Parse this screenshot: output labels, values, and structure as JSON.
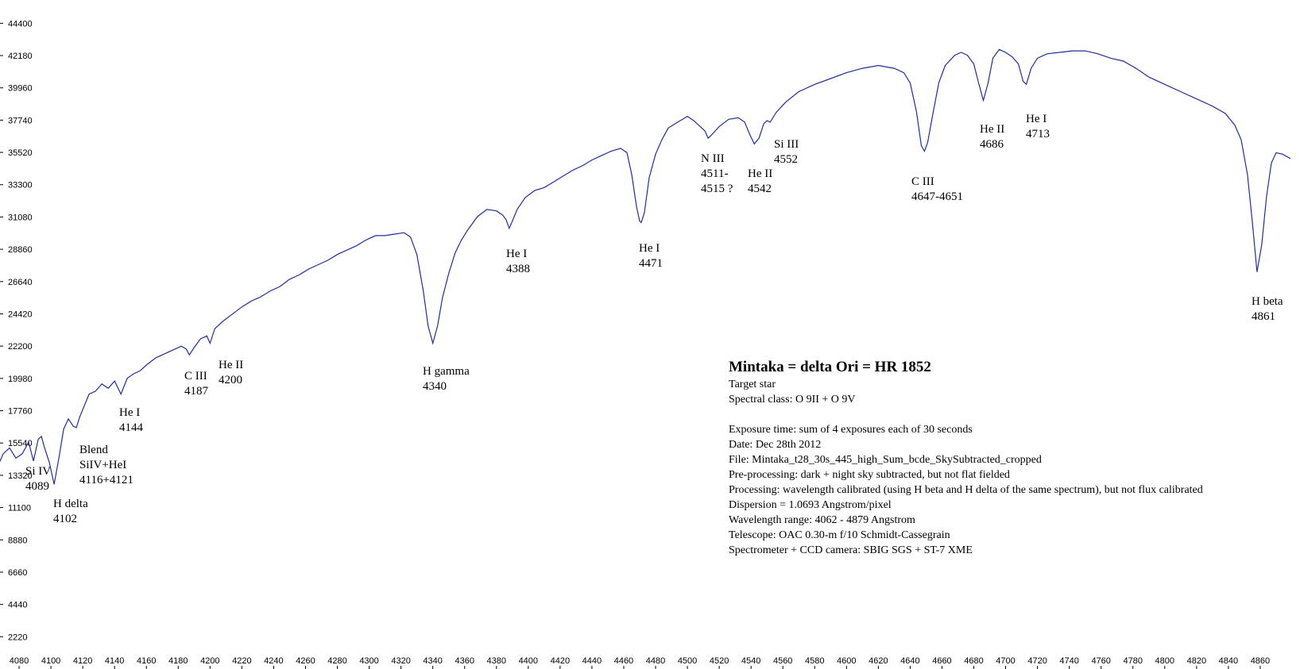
{
  "chart_data": {
    "type": "line",
    "title": "",
    "xlabel": "",
    "ylabel": "",
    "xlim": [
      4068,
      4885
    ],
    "ylim": [
      0,
      46000
    ],
    "grid": false,
    "line_color": "#1f2f9e",
    "x_ticks": [
      "4080",
      "4100",
      "4120",
      "4140",
      "4160",
      "4180",
      "4200",
      "4220",
      "4240",
      "4260",
      "4280",
      "4300",
      "4320",
      "4340",
      "4360",
      "4380",
      "4400",
      "4420",
      "4440",
      "4460",
      "4480",
      "4500",
      "4520",
      "4540",
      "4560",
      "4580",
      "4600",
      "4620",
      "4640",
      "4660",
      "4680",
      "4700",
      "4720",
      "4740",
      "4760",
      "4780",
      "4800",
      "4820",
      "4840",
      "4860"
    ],
    "y_ticks": [
      "2220",
      "4440",
      "6660",
      "8880",
      "11100",
      "13320",
      "15540",
      "17760",
      "19980",
      "22200",
      "24420",
      "26640",
      "28860",
      "31080",
      "33300",
      "35520",
      "37740",
      "39960",
      "42180",
      "44400"
    ],
    "series": [
      {
        "x": [
          4062,
          4066,
          4070,
          4074,
          4078,
          4082,
          4086,
          4089,
          4092,
          4094,
          4096,
          4099,
          4102,
          4105,
          4108,
          4111,
          4114,
          4116,
          4118,
          4121,
          4124,
          4128,
          4132,
          4136,
          4140,
          4144,
          4148,
          4152,
          4156,
          4160,
          4166,
          4172,
          4178,
          4182,
          4185,
          4187,
          4190,
          4194,
          4198,
          4200,
          4203,
          4208,
          4214,
          4220,
          4226,
          4232,
          4238,
          4244,
          4250,
          4256,
          4262,
          4268,
          4274,
          4280,
          4286,
          4292,
          4298,
          4304,
          4310,
          4316,
          4322,
          4326,
          4330,
          4334,
          4337,
          4340,
          4343,
          4346,
          4350,
          4354,
          4358,
          4362,
          4368,
          4374,
          4380,
          4384,
          4386,
          4388,
          4390,
          4393,
          4398,
          4404,
          4410,
          4416,
          4422,
          4428,
          4434,
          4440,
          4446,
          4452,
          4458,
          4462,
          4465,
          4468,
          4470,
          4471,
          4473,
          4476,
          4480,
          4484,
          4488,
          4494,
          4500,
          4504,
          4508,
          4511,
          4513,
          4515,
          4520,
          4526,
          4532,
          4536,
          4539,
          4542,
          4545,
          4548,
          4550,
          4552,
          4556,
          4562,
          4570,
          4580,
          4590,
          4600,
          4610,
          4620,
          4630,
          4636,
          4640,
          4644,
          4647,
          4649,
          4651,
          4654,
          4658,
          4662,
          4668,
          4672,
          4676,
          4680,
          4683,
          4686,
          4689,
          4692,
          4696,
          4700,
          4704,
          4708,
          4711,
          4713,
          4716,
          4720,
          4726,
          4734,
          4742,
          4750,
          4758,
          4766,
          4774,
          4782,
          4790,
          4800,
          4810,
          4820,
          4830,
          4838,
          4844,
          4848,
          4852,
          4855,
          4858,
          4861,
          4864,
          4867,
          4870,
          4874,
          4879
        ],
        "y": [
          14200,
          13800,
          14800,
          15200,
          14500,
          14800,
          15600,
          14300,
          15800,
          16000,
          15200,
          14200,
          12700,
          14500,
          16500,
          17200,
          16700,
          16600,
          17300,
          18100,
          18900,
          19100,
          19600,
          19300,
          19800,
          18900,
          20000,
          20300,
          20500,
          20900,
          21400,
          21700,
          22000,
          22200,
          22000,
          21600,
          22100,
          22700,
          22900,
          22400,
          23400,
          23900,
          24400,
          24900,
          25300,
          25600,
          26000,
          26300,
          26800,
          27100,
          27500,
          27800,
          28100,
          28500,
          28800,
          29100,
          29500,
          29800,
          29800,
          29900,
          30000,
          29700,
          28500,
          26000,
          23600,
          22400,
          23600,
          25500,
          27200,
          28600,
          29500,
          30200,
          31100,
          31600,
          31500,
          31200,
          30900,
          30300,
          30800,
          31600,
          32400,
          32900,
          33100,
          33500,
          33900,
          34300,
          34600,
          35000,
          35300,
          35600,
          35800,
          35500,
          34000,
          31800,
          30800,
          30700,
          31400,
          33800,
          35400,
          36400,
          37200,
          37600,
          38000,
          37700,
          37300,
          37000,
          36500,
          36700,
          37300,
          37800,
          37900,
          37600,
          36800,
          36100,
          36500,
          37500,
          37700,
          37600,
          38300,
          39000,
          39700,
          40200,
          40600,
          41000,
          41300,
          41500,
          41300,
          41000,
          40300,
          38300,
          36000,
          35600,
          36200,
          38000,
          40300,
          41500,
          42200,
          42400,
          42200,
          41600,
          40300,
          39100,
          40300,
          42000,
          42600,
          42400,
          42100,
          41600,
          40400,
          40200,
          41300,
          42000,
          42300,
          42400,
          42500,
          42500,
          42300,
          42000,
          41800,
          41300,
          40700,
          40200,
          39700,
          39200,
          38700,
          38200,
          37400,
          36400,
          34000,
          30800,
          27300,
          29200,
          32500,
          34800,
          35500,
          35400,
          35100
        ]
      }
    ],
    "annotations": [
      {
        "line1": "Si IV",
        "line2": "4089"
      },
      {
        "line1": "H delta",
        "line2": "4102"
      },
      {
        "line1": "Blend",
        "line2": "SiIV+HeI",
        "line3": "4116+4121"
      },
      {
        "line1": "He I",
        "line2": "4144"
      },
      {
        "line1": "C III",
        "line2": "4187"
      },
      {
        "line1": "He II",
        "line2": "4200"
      },
      {
        "line1": "H gamma",
        "line2": "4340"
      },
      {
        "line1": "He I",
        "line2": "4388"
      },
      {
        "line1": "He I",
        "line2": "4471"
      },
      {
        "line1": "N III",
        "line2": "4511-",
        "line3": "4515 ?"
      },
      {
        "line1": "He II",
        "line2": "4542"
      },
      {
        "line1": "Si III",
        "line2": "4552"
      },
      {
        "line1": "C III",
        "line2": "4647-4651"
      },
      {
        "line1": "He II",
        "line2": "4686"
      },
      {
        "line1": "He I",
        "line2": "4713"
      },
      {
        "line1": "H beta",
        "line2": "4861"
      }
    ],
    "info": {
      "title": "Mintaka = delta Ori = HR 1852",
      "line1": "Target star",
      "line2": "Spectral class: O 9II + O 9V",
      "line3": "Exposure time: sum of 4 exposures each of 30 seconds",
      "line4": "Date: Dec 28th 2012",
      "line5": "File: Mintaka_t28_30s_445_high_Sum_bcde_SkySubtracted_cropped",
      "line6": "Pre-processing: dark + night sky subtracted, but not flat fielded",
      "line7": "Processing: wavelength calibrated (using H beta and H delta of the same spectrum), but not flux calibrated",
      "line8": "Dispersion = 1.0693 Angstrom/pixel",
      "line9": "Wavelength range: 4062 - 4879 Angstrom",
      "line10": "Telescope: OAC 0.30-m  f/10 Schmidt-Cassegrain",
      "line11": "Spectrometer + CCD camera: SBIG SGS + ST-7 XME"
    }
  }
}
